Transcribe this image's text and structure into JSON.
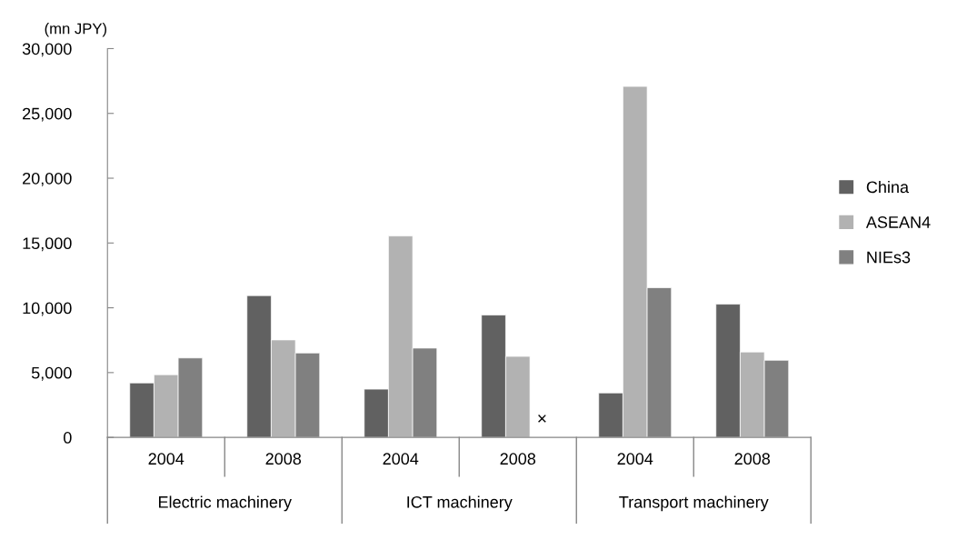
{
  "chart_data": {
    "type": "bar",
    "ylabel": "(mn JPY)",
    "categories": [
      "2004",
      "2008",
      "2004",
      "2008",
      "2004",
      "2008"
    ],
    "series": [
      {
        "name": "China",
        "color": "#616161",
        "values": [
          4200,
          10940,
          3720,
          9440,
          3430,
          10280
        ]
      },
      {
        "name": "ASEAN4",
        "color": "#b2b2b2",
        "values": [
          4840,
          7520,
          15540,
          6250,
          27080,
          6590
        ]
      },
      {
        "name": "NIEs3",
        "color": "#808080",
        "values": [
          6130,
          6510,
          6890,
          null,
          11550,
          5950
        ]
      }
    ],
    "annotations": [
      "Electric machinery",
      "ICT machinery",
      "Transport machinery",
      "×"
    ],
    "ylim": [
      0,
      30000
    ],
    "yticks": [
      0,
      {
        "value": 5000,
        "label": "5,000"
      },
      {
        "value": 10000,
        "label": "10,000"
      },
      {
        "value": 15000,
        "label": "15,000"
      },
      {
        "value": 20000,
        "label": "20,000"
      },
      {
        "value": 25000,
        "label": "25,000"
      },
      {
        "value": 30000,
        "label": "30,000"
      }
    ],
    "grid": false,
    "legend": "right"
  }
}
